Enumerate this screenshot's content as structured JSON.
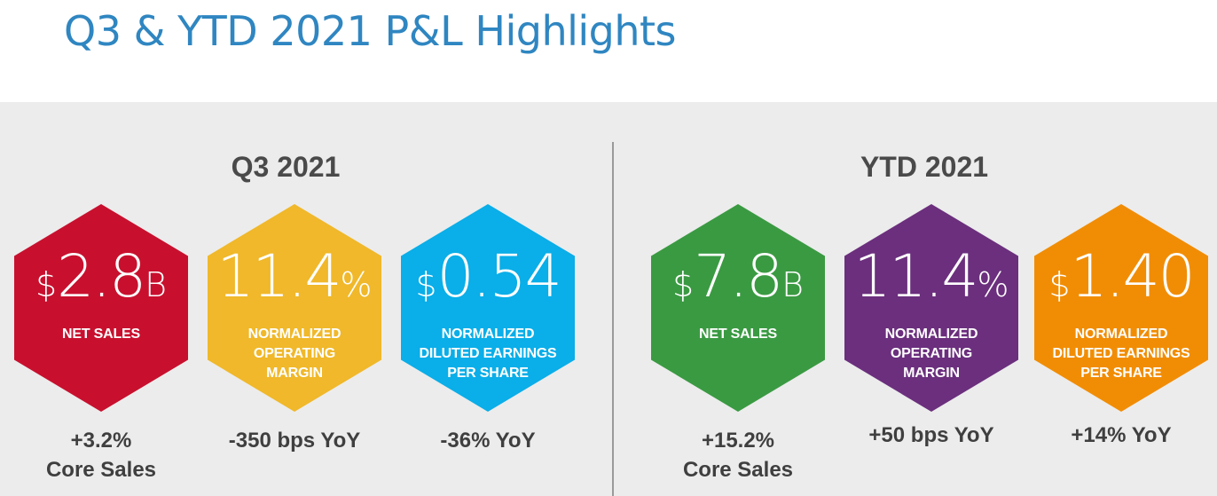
{
  "title": "Q3 & YTD 2021 P&L Highlights",
  "colors": {
    "title": "#2f86c1",
    "panel": "#ececec",
    "red": "#c8102e",
    "yellow": "#f0b82a",
    "blue": "#0aaee8",
    "green": "#3a9a42",
    "purple": "#6b2f7d",
    "orange": "#f18d05"
  },
  "sections": [
    {
      "heading": "Q3 2021",
      "metrics": [
        {
          "prefix": "$",
          "value": "2.8",
          "suffix": "B",
          "label": "NET SALES",
          "caption": "+3.2%\nCore Sales"
        },
        {
          "prefix": "",
          "value": "11.4",
          "suffix": "%",
          "label": "NORMALIZED\nOPERATING\nMARGIN",
          "caption": "-350 bps YoY"
        },
        {
          "prefix": "$",
          "value": "0.54",
          "suffix": "",
          "label": "NORMALIZED\nDILUTED EARNINGS\nPER SHARE",
          "caption": "-36% YoY"
        }
      ]
    },
    {
      "heading": "YTD 2021",
      "metrics": [
        {
          "prefix": "$",
          "value": "7.8",
          "suffix": "B",
          "label": "NET SALES",
          "caption": "+15.2%\nCore Sales"
        },
        {
          "prefix": "",
          "value": "11.4",
          "suffix": "%",
          "label": "NORMALIZED\nOPERATING\nMARGIN",
          "caption": "+50 bps YoY"
        },
        {
          "prefix": "$",
          "value": "1.40",
          "suffix": "",
          "label": "NORMALIZED\nDILUTED EARNINGS\nPER SHARE",
          "caption": "+14% YoY"
        }
      ]
    }
  ]
}
